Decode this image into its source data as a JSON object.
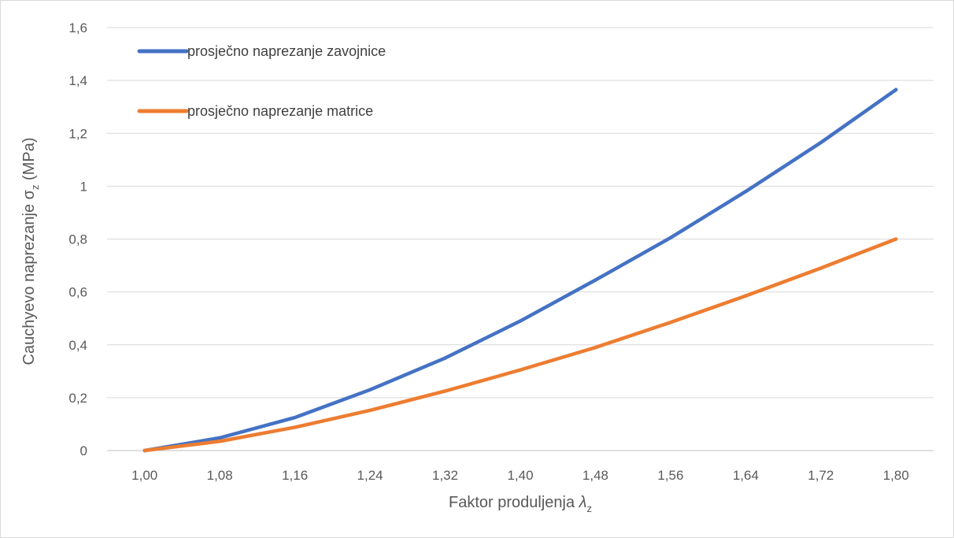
{
  "chart_data": {
    "type": "line",
    "xlabel": {
      "text": "Faktor produljenja ",
      "symbol": "λ",
      "subscript": "z"
    },
    "ylabel": {
      "text": "Cauchyevo naprezanje σ",
      "subscript": "z",
      "suffix": " (MPa)"
    },
    "x_ticks": [
      "1,00",
      "1,08",
      "1,16",
      "1,24",
      "1,32",
      "1,40",
      "1,48",
      "1,56",
      "1,64",
      "1,72",
      "1,80"
    ],
    "y_ticks": [
      "0",
      "0,2",
      "0,4",
      "0,6",
      "0,8",
      "1",
      "1,2",
      "1,4",
      "1,6"
    ],
    "xlim": [
      1.0,
      1.8
    ],
    "ylim": [
      0,
      1.6
    ],
    "grid": "horizontal",
    "legend_position": "top-left",
    "x": [
      1.0,
      1.08,
      1.16,
      1.24,
      1.32,
      1.4,
      1.48,
      1.56,
      1.64,
      1.72,
      1.8
    ],
    "series": [
      {
        "name": "prosječno naprezanje zavojnice",
        "color": "#4472C4",
        "values": [
          0.0,
          0.048,
          0.125,
          0.23,
          0.35,
          0.49,
          0.645,
          0.805,
          0.98,
          1.165,
          1.365
        ]
      },
      {
        "name": "prosječno naprezanje matrice",
        "color": "#ED7D31",
        "values": [
          0.0,
          0.035,
          0.088,
          0.152,
          0.225,
          0.305,
          0.39,
          0.485,
          0.585,
          0.69,
          0.8
        ]
      }
    ],
    "colors": {
      "grid": "#d9d9d9",
      "axis": "#bfbfbf",
      "text": "#595959"
    }
  }
}
